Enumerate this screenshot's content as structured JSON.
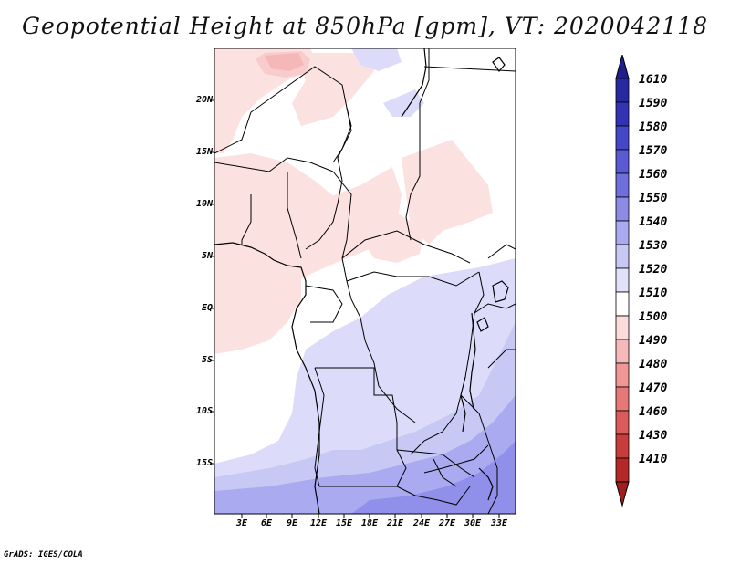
{
  "title": "Geopotential Height at 850hPa [gpm], VT: 2020042118",
  "latitude_labels": [
    "20N",
    "15N",
    "10N",
    "5N",
    "EQ",
    "5S",
    "10S",
    "15S"
  ],
  "longitude_labels": [
    "3E",
    "6E",
    "9E",
    "12E",
    "15E",
    "18E",
    "21E",
    "24E",
    "27E",
    "30E",
    "33E"
  ],
  "colorbar": {
    "labels": [
      "1610",
      "1590",
      "1580",
      "1570",
      "1560",
      "1550",
      "1540",
      "1530",
      "1520",
      "1510",
      "1500",
      "1490",
      "1480",
      "1470",
      "1460",
      "1430",
      "1410"
    ],
    "colors": [
      "#1e1e8c",
      "#2828a0",
      "#3232b4",
      "#4646c8",
      "#5a5ad2",
      "#6e6edc",
      "#8c8ce6",
      "#aaaaf0",
      "#c8c8f5",
      "#e1e1fa",
      "#ffffff",
      "#fadcdc",
      "#f5b9b9",
      "#f09696",
      "#e67878",
      "#dc5a5a",
      "#c83c3c",
      "#b42828",
      "#a01e1e"
    ]
  },
  "map_colors": {
    "pink_light": "#fce1e1",
    "pink_medium": "#f7c3c3",
    "pink_dark": "#f09a9a",
    "blue_1": "#dcdcfa",
    "blue_2": "#c8c8f5",
    "blue_3": "#aaaaf0",
    "blue_4": "#9090ea"
  },
  "credit": "GrADS: IGES/COLA"
}
